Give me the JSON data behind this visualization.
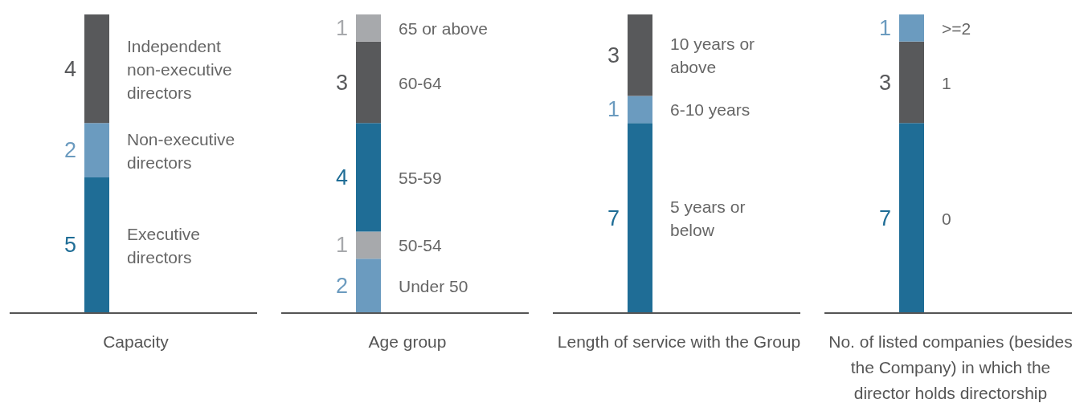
{
  "chart_data": [
    {
      "type": "bar",
      "stacked": true,
      "categories": [
        null
      ],
      "xlabel": "Capacity",
      "data_labels": true,
      "series": [
        {
          "name": "Executive directors",
          "color": "#1f6d96",
          "values": [
            5
          ]
        },
        {
          "name": "Non-executive directors",
          "color": "#6b9bbf",
          "values": [
            2
          ]
        },
        {
          "name": "Independent non-executive directors",
          "color": "#58595b",
          "values": [
            4
          ]
        }
      ]
    },
    {
      "type": "bar",
      "stacked": true,
      "categories": [
        null
      ],
      "xlabel": "Age group",
      "data_labels": true,
      "series": [
        {
          "name": "Under 50",
          "color": "#6b9bbf",
          "values": [
            2
          ]
        },
        {
          "name": "50-54",
          "color": "#a7a9ac",
          "values": [
            1
          ]
        },
        {
          "name": "55-59",
          "color": "#1f6d96",
          "values": [
            4
          ]
        },
        {
          "name": "60-64",
          "color": "#58595b",
          "values": [
            3
          ]
        },
        {
          "name": "65 or above",
          "color": "#a7a9ac",
          "values": [
            1
          ]
        }
      ]
    },
    {
      "type": "bar",
      "stacked": true,
      "categories": [
        null
      ],
      "xlabel": "Length of service with the Group",
      "data_labels": true,
      "series": [
        {
          "name": "5 years or below",
          "color": "#1f6d96",
          "values": [
            7
          ]
        },
        {
          "name": "6-10 years",
          "color": "#6b9bbf",
          "values": [
            1
          ]
        },
        {
          "name": "10 years or above",
          "color": "#58595b",
          "values": [
            3
          ]
        }
      ]
    },
    {
      "type": "bar",
      "stacked": true,
      "categories": [
        null
      ],
      "xlabel": "No. of listed companies (besides the Company) in which the director holds directorship",
      "data_labels": true,
      "series": [
        {
          "name": "0",
          "color": "#1f6d96",
          "values": [
            7
          ]
        },
        {
          "name": "1",
          "color": "#58595b",
          "values": [
            3
          ]
        },
        {
          "name": ">=2",
          "color": "#6b9bbf",
          "values": [
            1
          ]
        }
      ]
    }
  ]
}
